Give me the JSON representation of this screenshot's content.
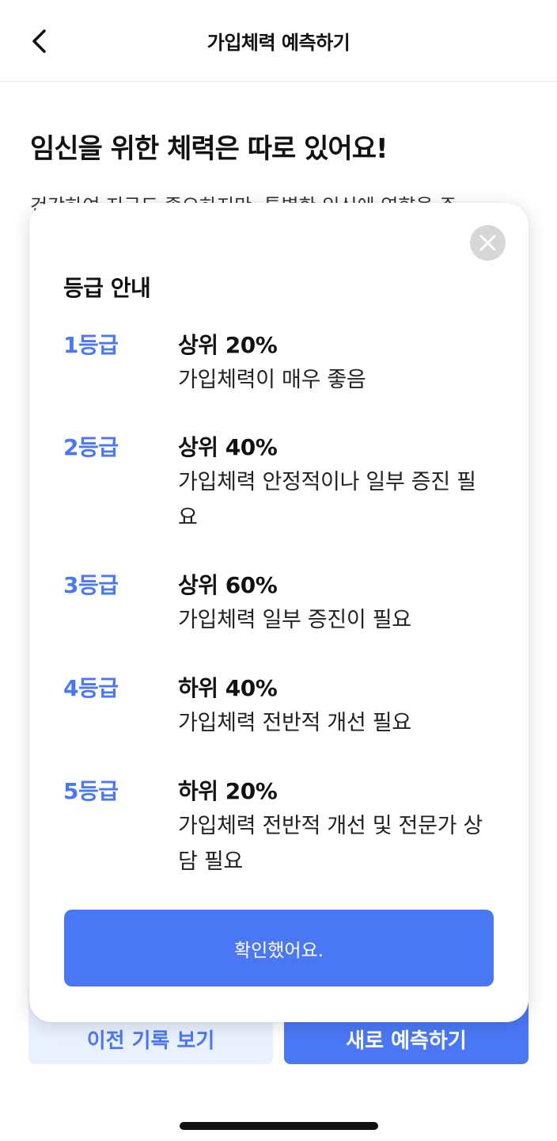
{
  "header": {
    "title": "가입체력 예측하기",
    "back_icon": "chevron-left-icon"
  },
  "main": {
    "headline": "임신을 위한 체력은 따로 있어요!",
    "description": "건강하여 지금도 좋으하지만, 특별한 임신에 영향을 주"
  },
  "bottom_buttons": {
    "history_label": "이전 기록 보기",
    "predict_label": "새로 예측하기"
  },
  "modal": {
    "title": "등급 안내",
    "close_icon": "close-icon",
    "grades": [
      {
        "label": "1등급",
        "rank": "상위 20%",
        "desc": "가입체력이 매우 좋음"
      },
      {
        "label": "2등급",
        "rank": "상위 40%",
        "desc": "가입체력 안정적이나 일부 증진 필요"
      },
      {
        "label": "3등급",
        "rank": "상위 60%",
        "desc": "가입체력 일부 증진이 필요"
      },
      {
        "label": "4등급",
        "rank": "하위 40%",
        "desc": "가입체력 전반적 개선 필요"
      },
      {
        "label": "5등급",
        "rank": "하위 20%",
        "desc": "가입체력 전반적 개선 및 전문가 상담 필요"
      }
    ],
    "confirm_label": "확인했어요."
  },
  "colors": {
    "accent": "#4a78f5",
    "accent_light": "#e9f0fe",
    "close_bg": "#d7d7d7"
  }
}
